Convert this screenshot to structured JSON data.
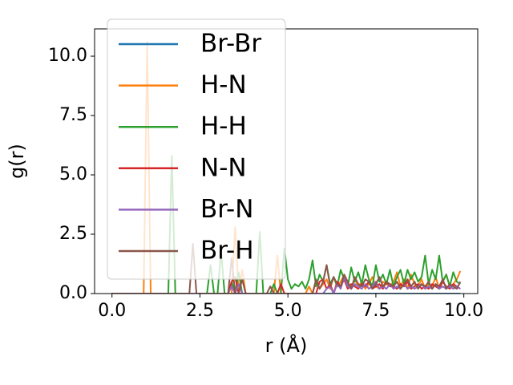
{
  "chart_data": {
    "type": "line",
    "xlabel": "r (Å)",
    "ylabel": "g(r)",
    "x": [
      0,
      0.1,
      0.2,
      0.3,
      0.4,
      0.5,
      0.6,
      0.7,
      0.8,
      0.9,
      1.0,
      1.1,
      1.2,
      1.3,
      1.4,
      1.5,
      1.6,
      1.7,
      1.8,
      1.9,
      2.0,
      2.1,
      2.2,
      2.3,
      2.4,
      2.5,
      2.6,
      2.7,
      2.8,
      2.9,
      3.0,
      3.1,
      3.2,
      3.3,
      3.4,
      3.5,
      3.6,
      3.7,
      3.8,
      3.9,
      4.0,
      4.1,
      4.2,
      4.3,
      4.4,
      4.5,
      4.6,
      4.7,
      4.8,
      4.9,
      5.0,
      5.1,
      5.2,
      5.3,
      5.4,
      5.5,
      5.6,
      5.7,
      5.8,
      5.9,
      6.0,
      6.1,
      6.2,
      6.3,
      6.4,
      6.5,
      6.6,
      6.7,
      6.8,
      6.9,
      7.0,
      7.1,
      7.2,
      7.3,
      7.4,
      7.5,
      7.6,
      7.7,
      7.8,
      7.9,
      8.0,
      8.1,
      8.2,
      8.3,
      8.4,
      8.5,
      8.6,
      8.7,
      8.8,
      8.9,
      9.0,
      9.1,
      9.2,
      9.3,
      9.4,
      9.5,
      9.6,
      9.7,
      9.8,
      9.9
    ],
    "series": [
      {
        "name": "Br-Br",
        "color": "#1f77b4",
        "values": [
          0,
          0,
          0,
          0,
          0,
          0,
          0,
          0,
          0,
          0,
          0,
          0,
          0,
          0,
          0,
          0,
          0,
          0,
          0,
          0,
          0,
          0,
          0,
          0,
          0,
          0,
          0,
          0,
          0,
          0,
          0,
          0,
          0,
          0,
          0,
          0,
          0,
          0,
          0,
          0,
          0,
          0,
          0,
          0,
          0,
          0,
          0,
          0,
          0,
          0,
          0,
          0,
          0,
          0,
          0,
          0,
          0,
          0,
          0,
          0,
          0,
          0,
          0,
          0,
          0,
          0,
          0,
          0,
          0,
          0,
          0,
          0,
          0,
          0,
          0,
          0,
          0,
          0,
          0,
          0,
          0,
          0,
          0,
          0,
          0,
          0,
          0,
          0,
          0,
          0,
          0,
          0,
          0,
          0,
          0,
          0,
          0,
          0,
          0,
          0
        ]
      },
      {
        "name": "H-N",
        "color": "#ff7f0e",
        "values": [
          0,
          0,
          0,
          0,
          0,
          0,
          0,
          0,
          0,
          0,
          10.6,
          0,
          0,
          0,
          0,
          0,
          0,
          0,
          0,
          0,
          0,
          0,
          0,
          0,
          0,
          0,
          0,
          0,
          0,
          0,
          0,
          0,
          0,
          0,
          0,
          2.8,
          0,
          1.0,
          0,
          0,
          0,
          0,
          0,
          0,
          0,
          0,
          0,
          1.6,
          0,
          0,
          0,
          0,
          0,
          0,
          0,
          0,
          0.3,
          0,
          0.5,
          0.2,
          0.4,
          0.6,
          0.2,
          0.7,
          0.3,
          0.5,
          0.8,
          0.4,
          0.2,
          0.6,
          0.3,
          0.5,
          0.2,
          0.4,
          0.7,
          0.3,
          0.2,
          0.5,
          0.4,
          0.3,
          0.5,
          0.9,
          0.3,
          0.6,
          0.2,
          0.8,
          0.4,
          0.3,
          0.6,
          0.2,
          0.4,
          0.3,
          0.7,
          0.2,
          0.5,
          0.8,
          0.3,
          0.4,
          0.6,
          0.95
        ]
      },
      {
        "name": "H-H",
        "color": "#2ca02c",
        "values": [
          0,
          0,
          0,
          0,
          0,
          0,
          0,
          0,
          0,
          0,
          0,
          0,
          0,
          0,
          0,
          0,
          0,
          5.8,
          0,
          0,
          0,
          0,
          0,
          0,
          0,
          0,
          0,
          0,
          1.2,
          0,
          0,
          1.8,
          0,
          0,
          0.5,
          0,
          0.9,
          0,
          0,
          0,
          0,
          0,
          2.6,
          0,
          0,
          0,
          0.4,
          0,
          0,
          1.9,
          0.6,
          0.2,
          0.4,
          0.3,
          0.5,
          0.2,
          0.6,
          1.4,
          0.3,
          0.8,
          0.5,
          1.2,
          0.4,
          0.7,
          0.3,
          1.0,
          0.6,
          0.3,
          1.1,
          0.5,
          0.9,
          0.4,
          1.2,
          0.6,
          0.3,
          1.2,
          0.5,
          0.8,
          0.4,
          1.0,
          0.3,
          0.7,
          1.0,
          0.4,
          1.0,
          0.6,
          0.9,
          0.5,
          0.7,
          1.6,
          0.4,
          1.0,
          0.6,
          1.6,
          0.5,
          0.8,
          0.3,
          0.9,
          0.5,
          0.4
        ]
      },
      {
        "name": "N-N",
        "color": "#d62728",
        "values": [
          0,
          0,
          0,
          0,
          0,
          0,
          0,
          0,
          0,
          0,
          0,
          0,
          0,
          0,
          0,
          0,
          0,
          0,
          0,
          0,
          0,
          0,
          0,
          0,
          0,
          0,
          0,
          0,
          0,
          0,
          0,
          0,
          0,
          0,
          0.5,
          0.7,
          0,
          0,
          0,
          0,
          0,
          0,
          0,
          0,
          0,
          0,
          0,
          0,
          0.4,
          0,
          0,
          0,
          0,
          0,
          0,
          0,
          0,
          0,
          0,
          0.5,
          0.6,
          0.2,
          0.4,
          0,
          0.5,
          0.3,
          0.6,
          0.2,
          0.4,
          0.3,
          0.2,
          0.4,
          0.3,
          0.5,
          0.2,
          0.3,
          0.4,
          0.2,
          0.5,
          0.3,
          0.3,
          0.2,
          0.4,
          0.3,
          0.5,
          0.2,
          0.3,
          0.4,
          0.2,
          0.3,
          0.2,
          0.4,
          0.3,
          0.2,
          0.5,
          0.3,
          0.2,
          0.4,
          0.3,
          0.2
        ]
      },
      {
        "name": "Br-N",
        "color": "#9467bd",
        "values": [
          0,
          0,
          0,
          0,
          0,
          0,
          0,
          0,
          0,
          0,
          0,
          0,
          0,
          0,
          0,
          0,
          0,
          0,
          0,
          0,
          0,
          0,
          0,
          0,
          0,
          0,
          0,
          0,
          0,
          0,
          0,
          0,
          0,
          0,
          0.3,
          0,
          0.4,
          0,
          0,
          0,
          0,
          0,
          0,
          0,
          0,
          0,
          0,
          0,
          0,
          0,
          0,
          0,
          0,
          0,
          0,
          0,
          0,
          0,
          0,
          0,
          0,
          0.2,
          0.3,
          0,
          0.4,
          0.2,
          0.7,
          0.3,
          0.2,
          0.4,
          0.3,
          0.2,
          0.4,
          0.2,
          0.3,
          0.5,
          0.2,
          0.3,
          0.2,
          0.4,
          0.2,
          0.3,
          0.2,
          0.4,
          0.2,
          0.3,
          0.2,
          0.3,
          0.4,
          0.2,
          0.3,
          0.2,
          0.4,
          0.2,
          0.3,
          0.2,
          0.3,
          0.2,
          0.3,
          0.2
        ]
      },
      {
        "name": "Br-H",
        "color": "#8c564b",
        "values": [
          0,
          0,
          0,
          0,
          0,
          0,
          0,
          0,
          0,
          0,
          0,
          0,
          0,
          0,
          0,
          0,
          0,
          0,
          0,
          0,
          0,
          0,
          0,
          2.1,
          0,
          0,
          0,
          0,
          0,
          0,
          0,
          0,
          0,
          0,
          1.5,
          0,
          0,
          0.6,
          0,
          0,
          0,
          0,
          0,
          0,
          0,
          0.3,
          0,
          0,
          0,
          0,
          0,
          0,
          0,
          0,
          0,
          0,
          0,
          0,
          0.6,
          0.2,
          0.5,
          1.2,
          0.3,
          0.7,
          0.4,
          0.3,
          0.8,
          0.5,
          0.2,
          0.7,
          0.4,
          0.3,
          0.6,
          0.5,
          0.2,
          0.4,
          0.7,
          0.3,
          0.5,
          0.4,
          0.3,
          0.5,
          0.2,
          0.4,
          0.6,
          0.3,
          0.5,
          0.2,
          0.4,
          0.3,
          0.5,
          0.2,
          0.4,
          0.3,
          0.6,
          0.2,
          0.4,
          0.3,
          0.2,
          0.5
        ]
      }
    ],
    "xlim": [
      -0.495,
      10.395
    ],
    "xticks": [
      {
        "value": 0,
        "label": "0.0"
      },
      2.5,
      {
        "value": 5,
        "label": "5.0"
      },
      7.5,
      {
        "value": 10,
        "label": "10.0"
      }
    ],
    "ylim": [
      0,
      11.15
    ],
    "yticks": [
      {
        "value": 0,
        "label": "0.0"
      },
      2.5,
      {
        "value": 5,
        "label": "5.0"
      },
      7.5,
      {
        "value": 10,
        "label": "10.0"
      }
    ],
    "legend": "upper left"
  }
}
